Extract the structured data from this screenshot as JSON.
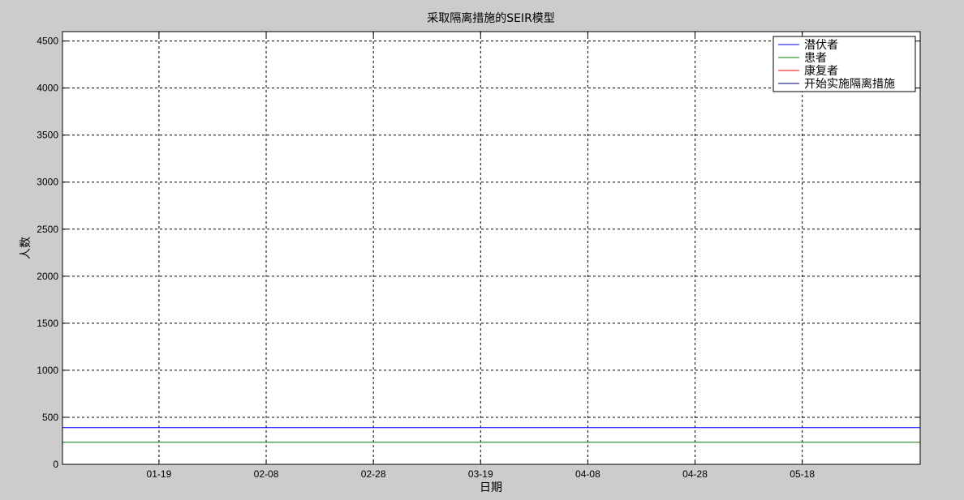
{
  "chart_data": {
    "type": "line",
    "title": "采取隔离措施的SEIR模型",
    "xlabel": "日期",
    "ylabel": "人数",
    "ylim": [
      0,
      4600
    ],
    "yticks": [
      0,
      500,
      1000,
      1500,
      2000,
      2500,
      3000,
      3500,
      4000,
      4500
    ],
    "xlim": [
      "2020-01-01",
      "2020-06-09"
    ],
    "xticks": [
      "01-19",
      "02-08",
      "02-28",
      "03-19",
      "04-08",
      "04-28",
      "05-18"
    ],
    "xtick_dates": [
      "2020-01-19",
      "2020-02-08",
      "2020-02-28",
      "2020-03-19",
      "2020-04-08",
      "2020-04-28",
      "2020-05-18"
    ],
    "grid": true,
    "legend_position": "top-right",
    "series": [
      {
        "name": "潜伏者",
        "color": "#0000ff",
        "x": [
          "2020-01-01",
          "2020-06-09"
        ],
        "values": [
          390,
          390
        ]
      },
      {
        "name": "患者",
        "color": "#008000",
        "x": [
          "2020-01-01",
          "2020-06-09"
        ],
        "values": [
          235,
          235
        ]
      },
      {
        "name": "康复者",
        "color": "#ff0000",
        "x": [
          "2020-01-01",
          "2020-06-09"
        ],
        "values": [
          0,
          0
        ]
      },
      {
        "name": "开始实施隔离措施",
        "color": "#000080",
        "x": [],
        "values": []
      }
    ]
  }
}
